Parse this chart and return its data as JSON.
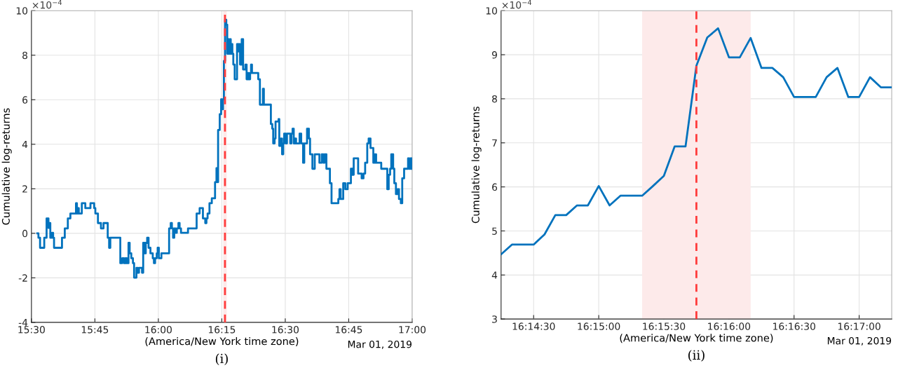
{
  "chart_data": [
    {
      "type": "step",
      "title": "(i)",
      "xlabel": "(America/New York time zone)",
      "ylabel": "Cumulative log-returns",
      "annotations": [
        "×10$^{−4}$",
        "Mar 01, 2019"
      ],
      "xlim": [
        15.5,
        17
      ],
      "xticks": [
        {
          "value": 15.5,
          "label": "15:30"
        },
        {
          "value": 15.75,
          "label": "15:45"
        },
        {
          "value": 16,
          "label": "16:00"
        },
        {
          "value": 16.25,
          "label": "16:15"
        },
        {
          "value": 16.5,
          "label": "16:30"
        },
        {
          "value": 16.75,
          "label": "16:45"
        },
        {
          "value": 17,
          "label": "17:00"
        }
      ],
      "ylim": [
        -4,
        10
      ],
      "yticks": [
        -4,
        -2,
        0,
        2,
        4,
        6,
        8,
        10
      ],
      "grid": true,
      "bands": [
        {
          "axis": "x",
          "from": 16.25556,
          "to": 16.26944,
          "color": "#fdeaea"
        }
      ],
      "ref_lines": [
        {
          "axis": "x",
          "value": 16.2625,
          "color": "#ff3b3b",
          "line_style": "dashed"
        }
      ],
      "series": [
        {
          "color": "#0072bd",
          "x": [
            15.523,
            15.5276,
            15.534,
            15.5505,
            15.5597,
            15.5671,
            15.5707,
            15.5744,
            15.5809,
            15.5854,
            15.5891,
            15.6204,
            15.6314,
            15.6434,
            15.6535,
            15.6756,
            15.6792,
            15.6829,
            15.6866,
            15.6985,
            15.7123,
            15.7325,
            15.7472,
            15.7518,
            15.762,
            15.7739,
            15.784,
            15.8006,
            15.8061,
            15.8107,
            15.8502,
            15.8576,
            15.8649,
            15.8704,
            15.876,
            15.8824,
            15.887,
            15.8934,
            15.8999,
            15.9045,
            15.9137,
            15.9182,
            15.9238,
            15.9357,
            15.9403,
            15.9458,
            15.9504,
            15.9559,
            15.9615,
            15.9688,
            15.978,
            15.9826,
            15.9872,
            15.9936,
            15.9973,
            16.0019,
            16.012,
            16.0424,
            16.0488,
            16.0534,
            16.058,
            16.0626,
            16.0672,
            16.0727,
            16.0791,
            16.0837,
            16.0892,
            16.1168,
            16.1508,
            16.1627,
            16.1756,
            16.1848,
            16.1894,
            16.194,
            16.2014,
            16.2106,
            16.2234,
            16.229,
            16.2326,
            16.2354,
            16.2418,
            16.2473,
            16.2519,
            16.2547,
            16.2583,
            16.2629,
            16.2677,
            16.2714,
            16.276,
            16.2787,
            16.2824,
            16.2852,
            16.2879,
            16.2916,
            16.2953,
            16.3008,
            16.31,
            16.3155,
            16.3183,
            16.3219,
            16.3284,
            16.3339,
            16.3431,
            16.3477,
            16.3514,
            16.3569,
            16.3615,
            16.3652,
            16.3688,
            16.3936,
            16.4001,
            16.412,
            16.4157,
            16.4433,
            16.4488,
            16.4525,
            16.458,
            16.4617,
            16.4736,
            16.4764,
            16.4828,
            16.4874,
            16.492,
            16.4957,
            16.5021,
            16.5067,
            16.5196,
            16.5242,
            16.5288,
            16.5334,
            16.538,
            16.5426,
            16.5564,
            16.5628,
            16.5702,
            16.5748,
            16.5858,
            16.5931,
            16.5977,
            16.6069,
            16.6161,
            16.6345,
            16.6437,
            16.6501,
            16.6547,
            16.6621,
            16.6759,
            16.6823,
            16.709,
            16.7136,
            16.7182,
            16.7283,
            16.7365,
            16.7457,
            16.7586,
            16.765,
            16.7696,
            16.7871,
            16.8009,
            16.8082,
            16.8147,
            16.823,
            16.8285,
            16.8358,
            16.8469,
            16.8524,
            16.8579,
            16.8781,
            16.902,
            16.9075,
            16.913,
            16.9176,
            16.925,
            16.9296,
            16.936,
            16.9425,
            16.948,
            16.9553,
            16.9608,
            16.9682,
            16.9838,
            16.9884,
            16.993,
            16.9985
          ],
          "values": [
            0,
            -0.2,
            -0.65,
            -0.2,
            0.67,
            0.24,
            0.46,
            -0.2,
            0.02,
            -0.2,
            -0.65,
            -0.2,
            0.22,
            0.67,
            0.89,
            1.35,
            0.89,
            1.13,
            0.89,
            1.35,
            1.13,
            1.35,
            1.13,
            0.89,
            0.46,
            0.22,
            0.46,
            -0.2,
            -0.65,
            -0.2,
            -1.34,
            -1.12,
            -1.34,
            -1.12,
            -1.34,
            -0.43,
            -0.9,
            -1.12,
            -1.34,
            -1.99,
            -1.55,
            -1.77,
            -1.55,
            -1.77,
            -0.43,
            -0.9,
            -0.43,
            -0.2,
            -0.65,
            -0.9,
            -1.12,
            -1.34,
            -1.12,
            -0.9,
            -0.65,
            -1.12,
            -0.9,
            0.22,
            0.46,
            0.22,
            -0.2,
            0.22,
            0.02,
            0.22,
            0.46,
            0.22,
            0.02,
            0.22,
            0.89,
            1.13,
            0.67,
            0.46,
            0.67,
            0.89,
            1.35,
            1.57,
            2.3,
            2.93,
            2.3,
            4.64,
            5.35,
            6.02,
            5.57,
            6.02,
            7.74,
            9.59,
            9.37,
            8.07,
            8.72,
            8.07,
            8.72,
            8.07,
            8.5,
            8.07,
            7.58,
            6.92,
            8.5,
            8.17,
            8.5,
            7.58,
            8.72,
            7.36,
            7.58,
            6.92,
            7.2,
            6.92,
            7.2,
            7.58,
            7.2,
            6.92,
            5.78,
            6.49,
            5.78,
            4.91,
            4.7,
            4.04,
            4.26,
            5.02,
            5.13,
            3.93,
            4.26,
            3.55,
            4.04,
            4.48,
            4.04,
            4.48,
            4.04,
            4.48,
            4.7,
            4.04,
            4.26,
            4.04,
            4.48,
            4.04,
            3.17,
            4.04,
            4.7,
            4.26,
            3.55,
            2.9,
            3.55,
            3.17,
            3.55,
            3.17,
            3.55,
            2.9,
            2.25,
            1.35,
            1.54,
            1.98,
            1.54,
            2.25,
            1.98,
            2.25,
            2.9,
            2.63,
            3.37,
            2.68,
            2.47,
            2.68,
            3.17,
            4.04,
            4.26,
            3.83,
            3.17,
            3.55,
            3.17,
            2.9,
            1.98,
            2.63,
            2.9,
            3.55,
            2.9,
            2.25,
            1.76,
            1.98,
            1.54,
            1.35,
            2.47,
            2.9,
            3.37,
            2.9,
            3.37,
            2.9
          ]
        }
      ]
    },
    {
      "type": "line",
      "title": "(ii)",
      "xlabel": "(America/New York time zone)",
      "ylabel": "Cumulative log-returns",
      "annotations": [
        "×10$^{−4}$",
        "Mar 01, 2019"
      ],
      "xlim": [
        16.2375,
        16.2875
      ],
      "xticks": [
        {
          "value": 16.241667,
          "label": "16:14:30"
        },
        {
          "value": 16.25,
          "label": "16:15:00"
        },
        {
          "value": 16.258333,
          "label": "16:15:30"
        },
        {
          "value": 16.266667,
          "label": "16:16:00"
        },
        {
          "value": 16.275,
          "label": "16:16:30"
        },
        {
          "value": 16.283333,
          "label": "16:17:00"
        }
      ],
      "ylim": [
        3,
        10
      ],
      "yticks": [
        3,
        4,
        5,
        6,
        7,
        8,
        9,
        10
      ],
      "grid": true,
      "bands": [
        {
          "axis": "x",
          "from": 16.255556,
          "to": 16.269444,
          "color": "#fdeaea"
        }
      ],
      "ref_lines": [
        {
          "axis": "x",
          "value": 16.2625,
          "color": "#ff3b3b",
          "line_style": "dashed"
        }
      ],
      "series": [
        {
          "color": "#0072bd",
          "x": [
            16.2375,
            16.238889,
            16.240278,
            16.241667,
            16.243056,
            16.244444,
            16.245833,
            16.247222,
            16.248611,
            16.25,
            16.251389,
            16.252778,
            16.254167,
            16.255556,
            16.256944,
            16.258333,
            16.259722,
            16.261111,
            16.2625,
            16.263889,
            16.265278,
            16.266667,
            16.268056,
            16.269444,
            16.270833,
            16.272222,
            16.273611,
            16.275,
            16.276389,
            16.277778,
            16.279167,
            16.280556,
            16.281944,
            16.283333,
            16.284722,
            16.286111,
            16.2875
          ],
          "values": [
            4.47,
            4.69,
            4.69,
            4.69,
            4.92,
            5.36,
            5.36,
            5.58,
            5.58,
            6.02,
            5.58,
            5.8,
            5.8,
            5.8,
            6.02,
            6.25,
            6.92,
            6.92,
            8.75,
            9.39,
            9.6,
            8.94,
            8.94,
            9.38,
            8.7,
            8.7,
            8.49,
            8.04,
            8.04,
            8.04,
            8.49,
            8.7,
            8.04,
            8.04,
            8.49,
            8.26,
            8.26
          ]
        }
      ]
    }
  ]
}
